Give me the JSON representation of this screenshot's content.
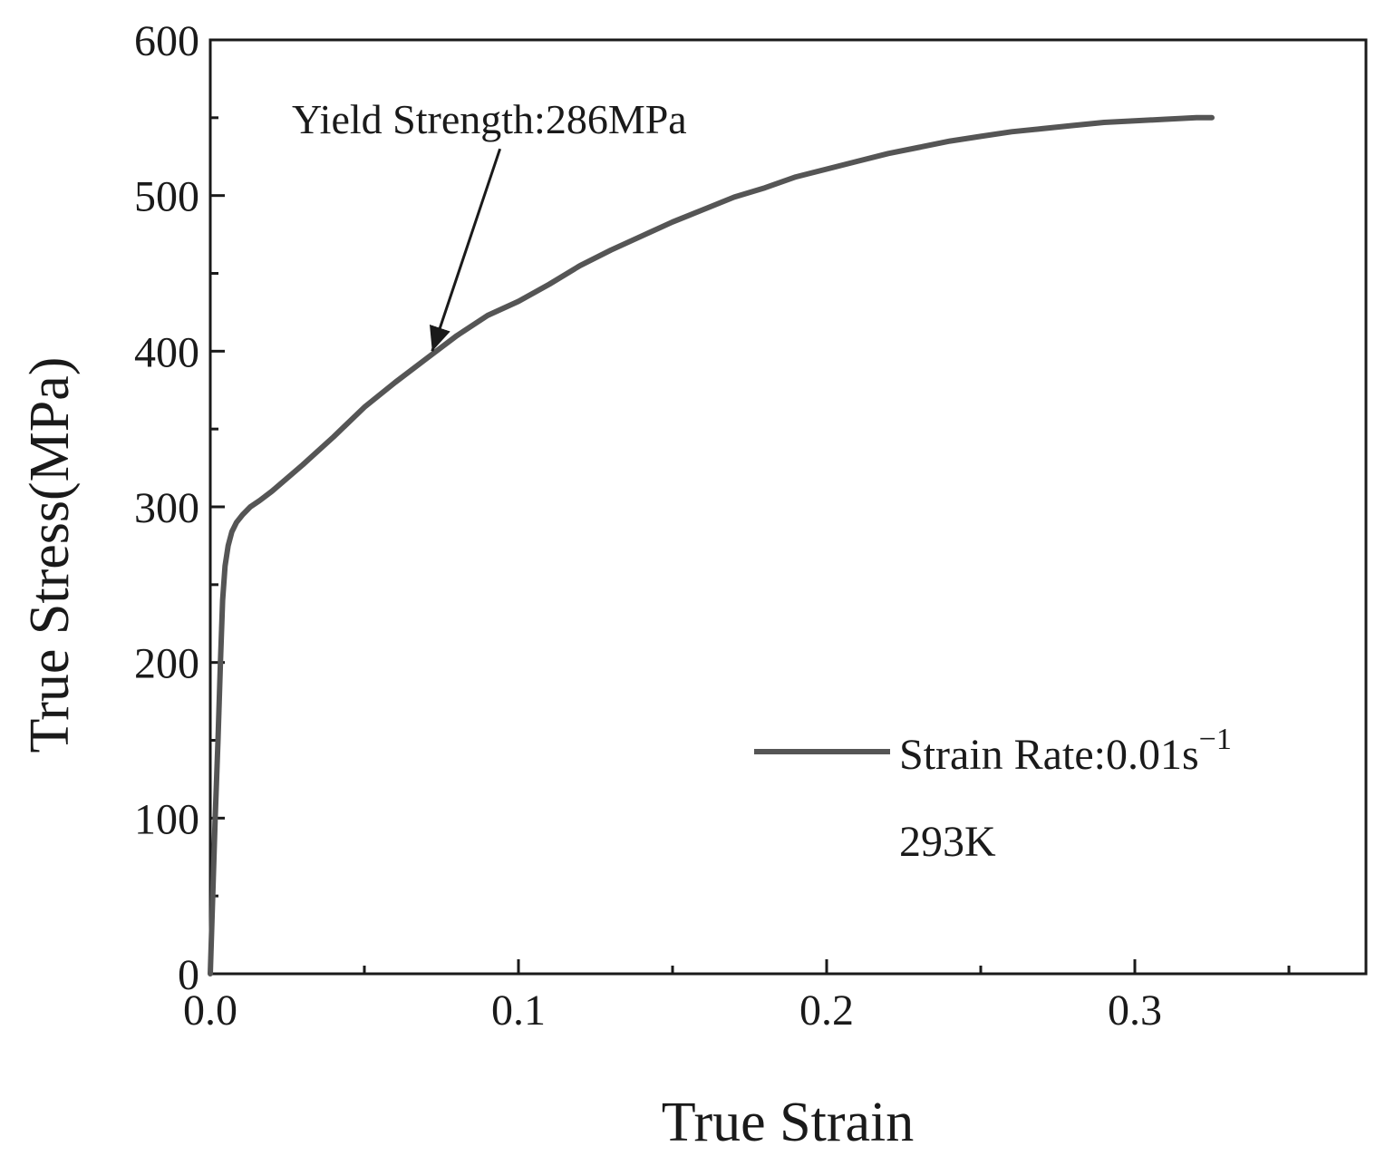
{
  "chart_data": {
    "type": "line",
    "title": "",
    "xlabel": "True Strain",
    "ylabel": "True Stress(MPa)",
    "xlim": [
      0.0,
      0.375
    ],
    "ylim": [
      0,
      600
    ],
    "x_ticks": [
      0.0,
      0.1,
      0.2,
      0.3
    ],
    "x_tick_labels": [
      "0.0",
      "0.1",
      "0.2",
      "0.3"
    ],
    "x_minor_ticks": [
      0.05,
      0.15,
      0.25,
      0.35
    ],
    "y_ticks": [
      0,
      100,
      200,
      300,
      400,
      500,
      600
    ],
    "y_tick_labels": [
      "0",
      "100",
      "200",
      "300",
      "400",
      "500",
      "600"
    ],
    "y_minor_ticks": [
      50,
      150,
      250,
      350,
      450,
      550
    ],
    "grid": false,
    "legend_position": "lower-right",
    "series": [
      {
        "name": "Strain Rate:0.01s",
        "name_superscript": "−1",
        "name_line2": "293K",
        "color": "#555555",
        "x": [
          0.0,
          0.0008,
          0.0016,
          0.0025,
          0.0033,
          0.004,
          0.0048,
          0.0058,
          0.007,
          0.0085,
          0.0105,
          0.013,
          0.016,
          0.02,
          0.03,
          0.04,
          0.05,
          0.06,
          0.07,
          0.08,
          0.09,
          0.1,
          0.11,
          0.12,
          0.13,
          0.14,
          0.15,
          0.16,
          0.17,
          0.18,
          0.19,
          0.2,
          0.21,
          0.22,
          0.23,
          0.24,
          0.25,
          0.26,
          0.27,
          0.28,
          0.29,
          0.3,
          0.31,
          0.32,
          0.325
        ],
        "y": [
          0,
          50,
          100,
          150,
          200,
          240,
          262,
          275,
          284,
          290,
          295,
          300,
          304,
          310,
          327,
          345,
          364,
          380,
          395,
          410,
          423,
          432,
          443,
          455,
          465,
          474,
          483,
          491,
          499,
          505,
          512,
          517,
          522,
          527,
          531,
          535,
          538,
          541,
          543,
          545,
          547,
          548,
          549,
          550,
          550
        ]
      }
    ],
    "annotations": [
      {
        "text": "Yield Strength:286MPa",
        "arrow_to": [
          0.072,
          400
        ],
        "arrow_from": [
          0.094,
          530
        ]
      }
    ]
  }
}
